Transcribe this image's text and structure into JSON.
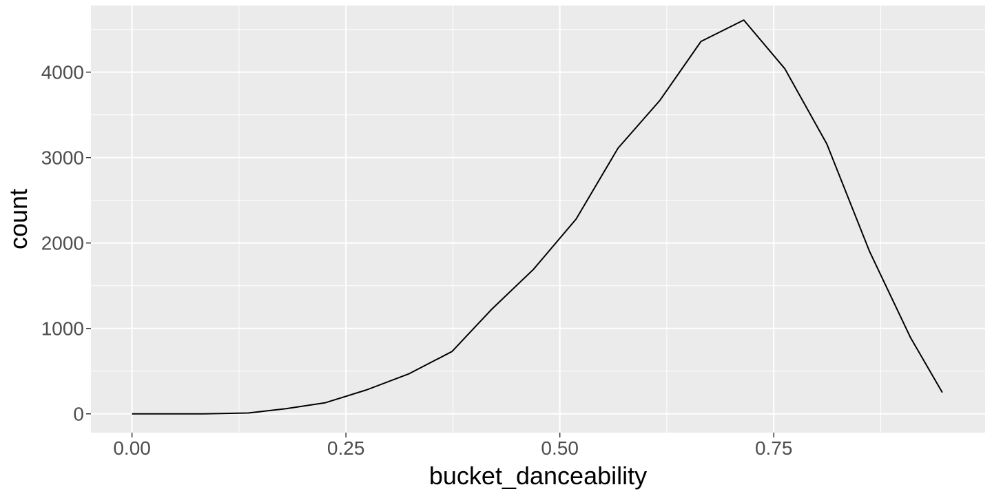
{
  "chart_data": {
    "type": "line",
    "title": "",
    "xlabel": "bucket_danceability",
    "ylabel": "count",
    "xlim": [
      -0.048,
      0.997
    ],
    "ylim": [
      -220,
      4780
    ],
    "x_ticks": [
      0.0,
      0.25,
      0.5,
      0.75
    ],
    "x_tick_labels": [
      "0.00",
      "0.25",
      "0.50",
      "0.75"
    ],
    "x_minor_ticks": [
      0.125,
      0.375,
      0.625,
      0.875
    ],
    "y_ticks": [
      0,
      1000,
      2000,
      3000,
      4000
    ],
    "y_tick_labels": [
      "0",
      "1000",
      "2000",
      "3000",
      "4000"
    ],
    "y_minor_ticks": [
      500,
      1500,
      2500,
      3500,
      4500
    ],
    "grid": true,
    "colors": {
      "panel": "#ebebeb",
      "grid": "#ffffff",
      "line": "#000000"
    },
    "series": [
      {
        "x": [
          0.0,
          0.083,
          0.136,
          0.18,
          0.226,
          0.274,
          0.324,
          0.374,
          0.42,
          0.469,
          0.519,
          0.568,
          0.617,
          0.665,
          0.715,
          0.763,
          0.812,
          0.862,
          0.91,
          0.947
        ],
        "y": [
          0,
          0,
          10,
          60,
          130,
          280,
          470,
          730,
          1220,
          1690,
          2280,
          3110,
          3670,
          4360,
          4610,
          4040,
          3160,
          1900,
          890,
          250
        ]
      }
    ]
  }
}
